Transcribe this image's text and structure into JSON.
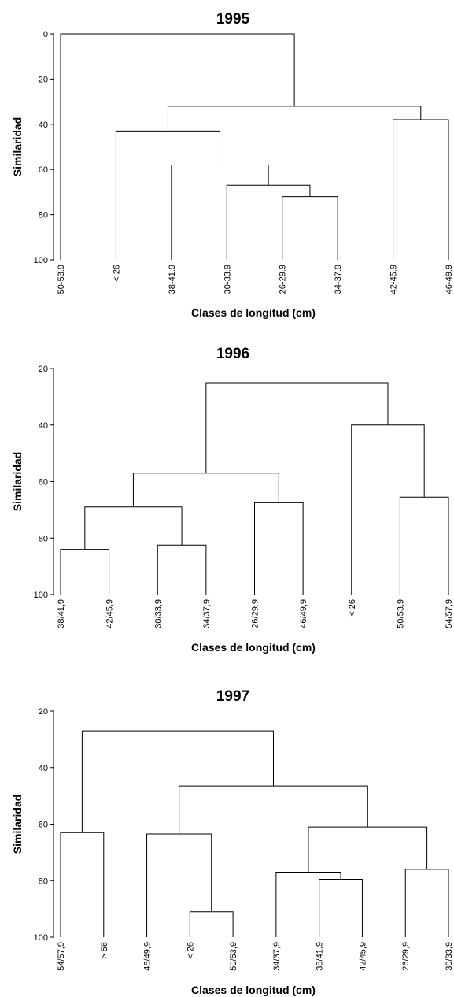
{
  "chart_data": [
    {
      "type": "dendrogram",
      "title": "1995",
      "ylabel": "Similaridad",
      "xlabel": "Clases de longitud (cm)",
      "ylim": [
        0,
        100
      ],
      "yticks": [
        0,
        20,
        40,
        60,
        80,
        100
      ],
      "tree": {
        "height": 0,
        "children": [
          "50-53.9",
          {
            "height": 32,
            "children": [
              {
                "height": 43,
                "children": [
                  "< 26",
                  {
                    "height": 58,
                    "children": [
                      "38-41.9",
                      {
                        "height": 67,
                        "children": [
                          "30-33.9",
                          {
                            "height": 72,
                            "children": [
                              "26-29.9",
                              "34-37.9"
                            ]
                          }
                        ]
                      }
                    ]
                  }
                ]
              },
              {
                "height": 38,
                "children": [
                  "42-45.9",
                  "46-49.9"
                ]
              }
            ]
          }
        ]
      }
    },
    {
      "type": "dendrogram",
      "title": "1996",
      "ylabel": "Similaridad",
      "xlabel": "Clases de longitud (cm)",
      "ylim": [
        20,
        100
      ],
      "yticks": [
        20,
        40,
        60,
        80,
        100
      ],
      "tree": {
        "height": 25,
        "children": [
          {
            "height": 57,
            "children": [
              {
                "height": 69,
                "children": [
                  {
                    "height": 84,
                    "children": [
                      "38/41,9",
                      "42/45,9"
                    ]
                  },
                  {
                    "height": 82.5,
                    "children": [
                      "30/33,9",
                      "34/37,9"
                    ]
                  }
                ]
              },
              {
                "height": 67.5,
                "children": [
                  "26/29.9",
                  "46/49,9"
                ]
              }
            ]
          },
          {
            "height": 40,
            "children": [
              "< 26",
              {
                "height": 65.5,
                "children": [
                  "50/53,9",
                  "54/57,9"
                ]
              }
            ]
          }
        ]
      }
    },
    {
      "type": "dendrogram",
      "title": "1997",
      "ylabel": "Similaridad",
      "xlabel": "Clases de longitud (cm)",
      "ylim": [
        20,
        100
      ],
      "yticks": [
        20,
        40,
        60,
        80,
        100
      ],
      "tree": {
        "height": 27,
        "children": [
          {
            "height": 63,
            "children": [
              "54/57,9",
              "> 58"
            ]
          },
          {
            "height": 46.5,
            "children": [
              {
                "height": 63.5,
                "children": [
                  "46/49,9",
                  {
                    "height": 91,
                    "children": [
                      "< 26",
                      "50/53,9"
                    ]
                  }
                ]
              },
              {
                "height": 61,
                "children": [
                  {
                    "height": 77,
                    "children": [
                      "34/37,9",
                      {
                        "height": 79.5,
                        "children": [
                          "38/41,9",
                          "42/45,9"
                        ]
                      }
                    ]
                  },
                  {
                    "height": 76,
                    "children": [
                      "26/29,9",
                      "30/33,9"
                    ]
                  }
                ]
              }
            ]
          }
        ]
      }
    }
  ]
}
